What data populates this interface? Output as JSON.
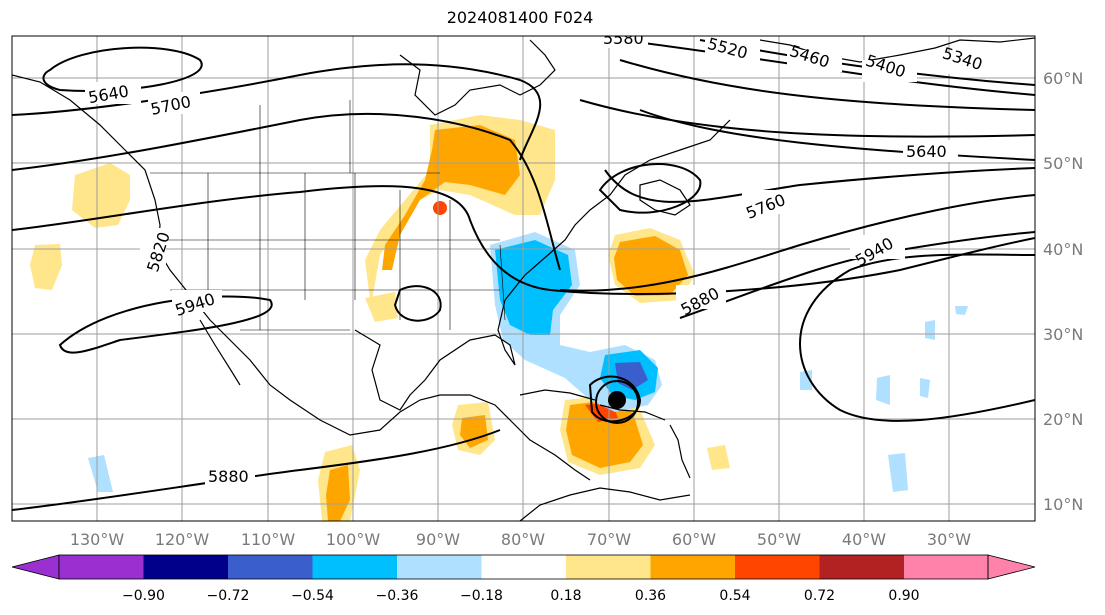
{
  "title": "2024081400 F024",
  "longitude_labels": [
    "130°W",
    "120°W",
    "110°W",
    "100°W",
    "90°W",
    "80°W",
    "70°W",
    "60°W",
    "50°W",
    "40°W",
    "30°W"
  ],
  "latitude_labels": [
    "60°N",
    "50°N",
    "40°N",
    "30°N",
    "20°N",
    "10°N"
  ],
  "contours": {
    "units_note": "",
    "labels": [
      "5640",
      "5700",
      "5820",
      "5940",
      "5880",
      "5520",
      "5460",
      "5400",
      "5340",
      "5640",
      "5760",
      "5940",
      "5880",
      "5580"
    ]
  },
  "colorbar": {
    "ticks": [
      "−0.90",
      "−0.72",
      "−0.54",
      "−0.36",
      "−0.18",
      "0.18",
      "0.36",
      "0.54",
      "0.72",
      "0.90"
    ],
    "colors": [
      "#9b30d0",
      "#00008b",
      "#3a5fcd",
      "#00bfff",
      "#afe0ff",
      "#ffffff",
      "#ffe68a",
      "#ffa500",
      "#ff4500",
      "#b22222",
      "#ff82ab"
    ],
    "extend": "both"
  },
  "storm_marker": {
    "shape": "filled circle with ring",
    "color": "#000000"
  },
  "colors": {
    "grid": "#9e9e9e",
    "coast": "#000000",
    "land_bg": "#ffffff"
  }
}
